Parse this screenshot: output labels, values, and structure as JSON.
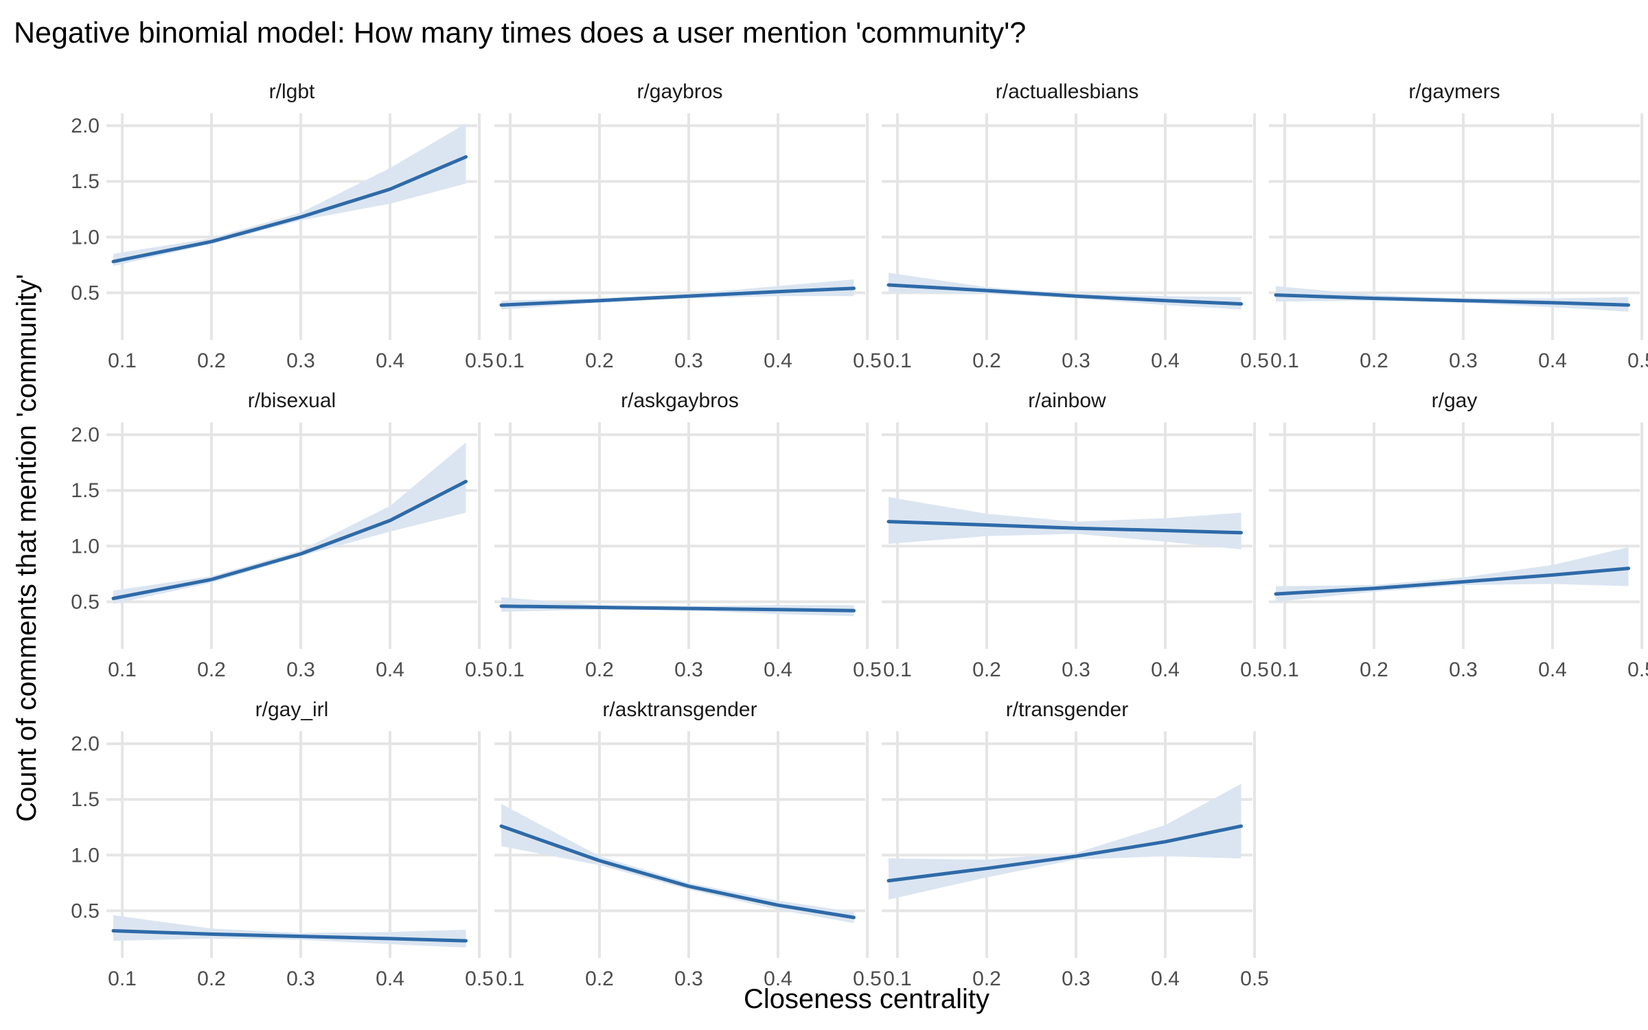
{
  "chart_data": {
    "type": "line",
    "title": "Negative binomial model: How many times does a user mention 'community'?",
    "xlabel": "Closeness centrality",
    "ylabel": "Count of comments that mention 'community'",
    "xlim": [
      0.09,
      0.49
    ],
    "ylim": [
      0.2,
      2.05
    ],
    "x_ticks": [
      "0.1",
      "0.2",
      "0.3",
      "0.4",
      "0.5"
    ],
    "y_ticks": [
      "0.5",
      "1.0",
      "1.5",
      "2.0"
    ],
    "grid": true,
    "facets": [
      {
        "name": "r/lgbt",
        "x": [
          0.09,
          0.2,
          0.3,
          0.4,
          0.485
        ],
        "y": [
          0.78,
          0.96,
          1.18,
          1.43,
          1.72
        ],
        "lower": [
          0.74,
          0.94,
          1.15,
          1.3,
          1.48
        ],
        "upper": [
          0.85,
          0.99,
          1.22,
          1.62,
          2.02
        ]
      },
      {
        "name": "r/gaybros",
        "x": [
          0.09,
          0.2,
          0.3,
          0.4,
          0.485
        ],
        "y": [
          0.39,
          0.43,
          0.47,
          0.51,
          0.54
        ],
        "lower": [
          0.35,
          0.41,
          0.45,
          0.47,
          0.47
        ],
        "upper": [
          0.43,
          0.45,
          0.49,
          0.56,
          0.62
        ]
      },
      {
        "name": "r/actuallesbians",
        "x": [
          0.09,
          0.2,
          0.3,
          0.4,
          0.485
        ],
        "y": [
          0.57,
          0.52,
          0.47,
          0.43,
          0.4
        ],
        "lower": [
          0.5,
          0.49,
          0.45,
          0.39,
          0.35
        ],
        "upper": [
          0.68,
          0.55,
          0.49,
          0.47,
          0.46
        ]
      },
      {
        "name": "r/gaymers",
        "x": [
          0.09,
          0.2,
          0.3,
          0.4,
          0.485
        ],
        "y": [
          0.48,
          0.45,
          0.43,
          0.41,
          0.39
        ],
        "lower": [
          0.42,
          0.43,
          0.41,
          0.37,
          0.33
        ],
        "upper": [
          0.56,
          0.48,
          0.45,
          0.45,
          0.46
        ]
      },
      {
        "name": "r/bisexual",
        "x": [
          0.09,
          0.2,
          0.3,
          0.4,
          0.485
        ],
        "y": [
          0.53,
          0.7,
          0.93,
          1.23,
          1.58
        ],
        "lower": [
          0.48,
          0.67,
          0.91,
          1.13,
          1.3
        ],
        "upper": [
          0.6,
          0.73,
          0.96,
          1.36,
          1.93
        ]
      },
      {
        "name": "r/askgaybros",
        "x": [
          0.09,
          0.2,
          0.3,
          0.4,
          0.485
        ],
        "y": [
          0.46,
          0.45,
          0.44,
          0.43,
          0.42
        ],
        "lower": [
          0.41,
          0.43,
          0.42,
          0.39,
          0.37
        ],
        "upper": [
          0.54,
          0.47,
          0.46,
          0.47,
          0.47
        ]
      },
      {
        "name": "r/ainbow",
        "x": [
          0.09,
          0.2,
          0.3,
          0.4,
          0.485
        ],
        "y": [
          1.22,
          1.19,
          1.16,
          1.14,
          1.12
        ],
        "lower": [
          1.02,
          1.09,
          1.11,
          1.04,
          0.97
        ],
        "upper": [
          1.44,
          1.29,
          1.22,
          1.25,
          1.3
        ]
      },
      {
        "name": "r/gay",
        "x": [
          0.09,
          0.2,
          0.3,
          0.4,
          0.485
        ],
        "y": [
          0.57,
          0.62,
          0.68,
          0.74,
          0.8
        ],
        "lower": [
          0.5,
          0.59,
          0.65,
          0.66,
          0.64
        ],
        "upper": [
          0.64,
          0.65,
          0.72,
          0.83,
          0.99
        ]
      },
      {
        "name": "r/gay_irl",
        "x": [
          0.09,
          0.2,
          0.3,
          0.4,
          0.485
        ],
        "y": [
          0.32,
          0.29,
          0.27,
          0.25,
          0.23
        ],
        "lower": [
          0.23,
          0.25,
          0.24,
          0.2,
          0.17
        ],
        "upper": [
          0.46,
          0.34,
          0.3,
          0.31,
          0.33
        ]
      },
      {
        "name": "r/asktransgender",
        "x": [
          0.09,
          0.2,
          0.3,
          0.4,
          0.485
        ],
        "y": [
          1.26,
          0.95,
          0.72,
          0.55,
          0.44
        ],
        "lower": [
          1.08,
          0.91,
          0.69,
          0.51,
          0.39
        ],
        "upper": [
          1.46,
          0.99,
          0.75,
          0.59,
          0.49
        ]
      },
      {
        "name": "r/transgender",
        "x": [
          0.09,
          0.2,
          0.3,
          0.4,
          0.485
        ],
        "y": [
          0.77,
          0.88,
          0.99,
          1.12,
          1.26
        ],
        "lower": [
          0.6,
          0.8,
          0.96,
          0.99,
          0.97
        ],
        "upper": [
          0.97,
          0.96,
          1.02,
          1.27,
          1.64
        ]
      }
    ]
  }
}
